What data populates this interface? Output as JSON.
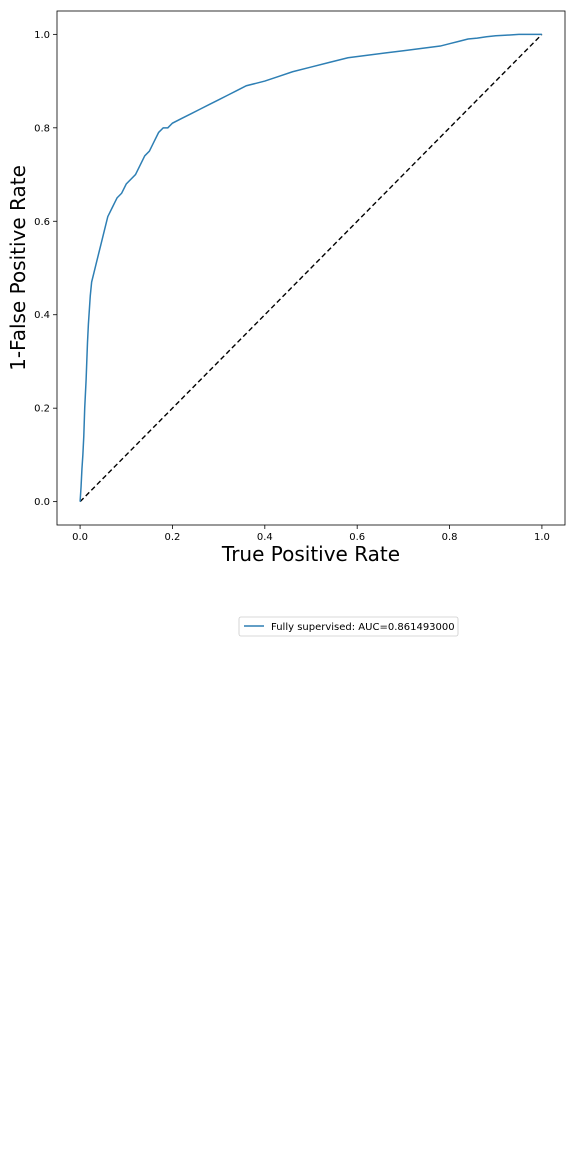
{
  "chart_data": {
    "type": "line",
    "title": "",
    "xlabel": "True Positive Rate",
    "ylabel": "1-False Positive Rate",
    "xlim": [
      -0.05,
      1.05
    ],
    "ylim": [
      -0.05,
      1.05
    ],
    "x_ticks": [
      "0.0",
      "0.2",
      "0.4",
      "0.6",
      "0.8",
      "1.0"
    ],
    "y_ticks": [
      "0.0",
      "0.2",
      "0.4",
      "0.6",
      "0.8",
      "1.0"
    ],
    "grid": false,
    "legend_position": "below-plot",
    "colors": {
      "roc": "#2e7fb4",
      "diagonal": "#000000"
    },
    "series": [
      {
        "name": "Fully supervised: AUC=0.861493000",
        "style": "solid",
        "x": [
          0.0,
          0.002,
          0.004,
          0.006,
          0.008,
          0.01,
          0.013,
          0.016,
          0.018,
          0.02,
          0.022,
          0.025,
          0.03,
          0.035,
          0.04,
          0.045,
          0.05,
          0.055,
          0.06,
          0.065,
          0.07,
          0.075,
          0.08,
          0.09,
          0.1,
          0.11,
          0.12,
          0.13,
          0.14,
          0.15,
          0.16,
          0.17,
          0.18,
          0.19,
          0.2,
          0.22,
          0.24,
          0.26,
          0.28,
          0.3,
          0.32,
          0.34,
          0.36,
          0.38,
          0.4,
          0.43,
          0.46,
          0.5,
          0.54,
          0.58,
          0.62,
          0.66,
          0.7,
          0.74,
          0.78,
          0.8,
          0.82,
          0.84,
          0.86,
          0.88,
          0.9,
          0.92,
          0.95,
          0.98,
          1.0
        ],
        "y": [
          0.0,
          0.03,
          0.07,
          0.1,
          0.14,
          0.2,
          0.26,
          0.34,
          0.38,
          0.41,
          0.44,
          0.47,
          0.49,
          0.51,
          0.53,
          0.55,
          0.57,
          0.59,
          0.61,
          0.62,
          0.63,
          0.64,
          0.65,
          0.66,
          0.68,
          0.69,
          0.7,
          0.72,
          0.74,
          0.75,
          0.77,
          0.79,
          0.8,
          0.8,
          0.81,
          0.82,
          0.83,
          0.84,
          0.85,
          0.86,
          0.87,
          0.88,
          0.89,
          0.895,
          0.9,
          0.91,
          0.92,
          0.93,
          0.94,
          0.95,
          0.955,
          0.96,
          0.965,
          0.97,
          0.975,
          0.98,
          0.985,
          0.99,
          0.992,
          0.995,
          0.997,
          0.998,
          1.0,
          1.0,
          1.0
        ]
      },
      {
        "name": "",
        "style": "dashed",
        "x": [
          0.0,
          1.0
        ],
        "y": [
          0.0,
          1.0
        ]
      }
    ]
  }
}
